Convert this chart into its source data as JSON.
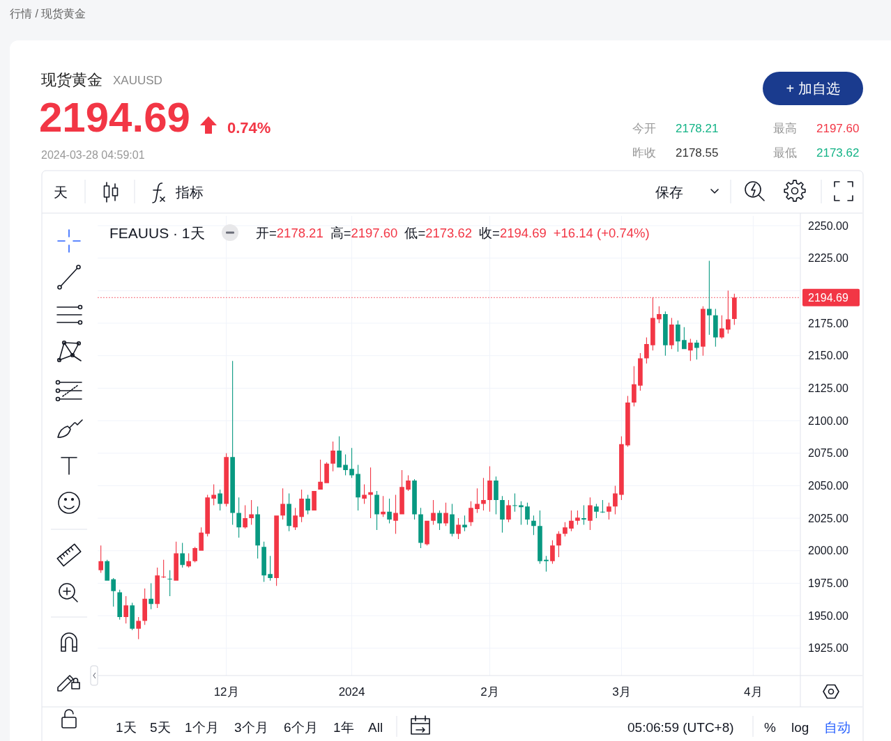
{
  "chart_data": {
    "type": "candlestick",
    "title": "现货黄金",
    "subtitle": "XAUUSD",
    "annotations": [
      "行情 / 现货黄金",
      "2194.69",
      "0.74%",
      "2024-03-28 04:59:01",
      "今开",
      "2178.21",
      "最高",
      "2197.60",
      "昨收",
      "2178.55",
      "最低",
      "2173.62",
      "+ 加自选",
      "天",
      "指标",
      "保存",
      "FEAUUS · 1天",
      "开=",
      "2178.21",
      "高=",
      "2197.60",
      "低=",
      "2173.62",
      "收=",
      "2194.69",
      "+16.14 (+0.74%)",
      "1天",
      "5天",
      "1个月",
      "3个月",
      "6个月",
      "1年",
      "All",
      "05:06:59 (UTC+8)",
      "%",
      "log",
      "自动"
    ],
    "categories": [
      null,
      null,
      null,
      null,
      null,
      null,
      null,
      null,
      null,
      null,
      null,
      null,
      null,
      null,
      null,
      null,
      null,
      null,
      null,
      null,
      "12月",
      null,
      null,
      null,
      null,
      null,
      null,
      null,
      null,
      null,
      null,
      null,
      null,
      null,
      null,
      null,
      null,
      null,
      null,
      null,
      "2024",
      null,
      null,
      null,
      null,
      null,
      null,
      null,
      null,
      null,
      null,
      null,
      null,
      null,
      null,
      null,
      null,
      null,
      null,
      null,
      null,
      null,
      "2月",
      null,
      null,
      null,
      null,
      null,
      null,
      null,
      null,
      null,
      null,
      null,
      null,
      null,
      null,
      null,
      null,
      null,
      null,
      null,
      null,
      "3月",
      null,
      null,
      null,
      null,
      null,
      null,
      null,
      null,
      null,
      null,
      null,
      null,
      null,
      null,
      null,
      null,
      null,
      null,
      null,
      null,
      "4月",
      null,
      null,
      null,
      null,
      null,
      null,
      null
    ],
    "ohlc": [
      [
        1985,
        2004,
        1983,
        1992
      ],
      [
        1992,
        1993,
        1977,
        1977
      ],
      [
        1978,
        1979,
        1957,
        1969
      ],
      [
        1968,
        1970,
        1947,
        1949
      ],
      [
        1949,
        1965,
        1944,
        1958
      ],
      [
        1958,
        1960,
        1939,
        1940
      ],
      [
        1940,
        1949,
        1932,
        1946
      ],
      [
        1946,
        1971,
        1943,
        1963
      ],
      [
        1963,
        1975,
        1955,
        1959
      ],
      [
        1959,
        1987,
        1956,
        1981
      ],
      [
        1979.5,
        1993,
        1979,
        1980
      ],
      [
        1978.5,
        1985,
        1965,
        1978
      ],
      [
        1977,
        2007,
        1977,
        1998
      ],
      [
        1998,
        2006,
        1987,
        1989
      ],
      [
        1988,
        1998,
        1987,
        1992
      ],
      [
        1992,
        2003,
        1991,
        2002
      ],
      [
        2000,
        2018,
        2000,
        2014
      ],
      [
        2013,
        2043,
        2011,
        2041
      ],
      [
        2040,
        2051,
        2035,
        2043
      ],
      [
        2044,
        2047,
        2031,
        2036
      ],
      [
        2036,
        2075,
        2034,
        2072
      ],
      [
        2072,
        2146,
        2020,
        2029
      ],
      [
        2029,
        2041,
        2010,
        2018
      ],
      [
        2018,
        2035,
        2017,
        2025
      ],
      [
        2025,
        2039,
        2020,
        2028
      ],
      [
        2028,
        2034,
        1994,
        2004
      ],
      [
        2003,
        2007,
        1976,
        1981
      ],
      [
        1982,
        1996,
        1977,
        1979
      ],
      [
        1979,
        2027,
        1973,
        2027
      ],
      [
        2027,
        2048,
        2024,
        2036
      ],
      [
        2036,
        2044,
        2015,
        2019
      ],
      [
        2018,
        2033,
        2016,
        2027
      ],
      [
        2026,
        2047,
        2022,
        2040
      ],
      [
        2040,
        2043,
        2028,
        2031
      ],
      [
        2031,
        2046,
        2031,
        2046
      ],
      [
        2047,
        2070,
        2047,
        2053
      ],
      [
        2052,
        2068,
        2052,
        2067
      ],
      [
        2067,
        2084,
        2061,
        2077
      ],
      [
        2077,
        2088,
        2064,
        2064
      ],
      [
        2066,
        2074,
        2058,
        2062
      ],
      [
        2063,
        2079,
        2056,
        2058
      ],
      [
        2059,
        2066,
        2031,
        2041
      ],
      [
        2040,
        2051,
        2036,
        2043
      ],
      [
        2043,
        2064,
        2025,
        2045
      ],
      [
        2043,
        2046,
        2016,
        2028
      ],
      [
        2028,
        2042,
        2026,
        2030
      ],
      [
        2030,
        2040,
        2021,
        2024
      ],
      [
        2023,
        2043,
        2013,
        2029
      ],
      [
        2028,
        2062,
        2028,
        2049
      ],
      [
        2047,
        2058,
        2046,
        2054
      ],
      [
        2054,
        2055,
        2024,
        2028
      ],
      [
        2028,
        2033,
        2002,
        2006
      ],
      [
        2005,
        2023,
        2004,
        2023
      ],
      [
        2023,
        2039,
        2020,
        2029
      ],
      [
        2029,
        2031,
        2016,
        2021
      ],
      [
        2021,
        2037,
        2019,
        2029
      ],
      [
        2028,
        2036,
        2011,
        2013
      ],
      [
        2013,
        2025,
        2009,
        2020
      ],
      [
        2020,
        2027,
        2015,
        2018
      ],
      [
        2022,
        2038,
        2019,
        2033
      ],
      [
        2032,
        2048,
        2029,
        2036
      ],
      [
        2036,
        2056,
        2031,
        2039
      ],
      [
        2039,
        2065,
        2030,
        2054
      ],
      [
        2054,
        2057,
        2028,
        2039
      ],
      [
        2039,
        2042,
        2014,
        2024
      ],
      [
        2024,
        2039,
        2022,
        2035
      ],
      [
        2035,
        2044,
        2030,
        2034.5
      ],
      [
        2035,
        2038,
        2020,
        2033.5
      ],
      [
        2034,
        2037,
        2020,
        2024
      ],
      [
        2023,
        2027,
        2012,
        2019
      ],
      [
        2019,
        2031,
        1990,
        1992
      ],
      [
        1993,
        1996,
        1984,
        1992
      ],
      [
        1992,
        2008,
        1990,
        2004
      ],
      [
        2004,
        2015,
        1995,
        2013
      ],
      [
        2013,
        2022,
        2011,
        2018
      ],
      [
        2017,
        2031,
        2015,
        2023
      ],
      [
        2023,
        2031,
        2020,
        2025.5
      ],
      [
        2025,
        2035,
        2020,
        2024
      ],
      [
        2023,
        2041,
        2016,
        2035
      ],
      [
        2034,
        2036,
        2025,
        2030
      ],
      [
        2030,
        2039,
        2029,
        2029.5
      ],
      [
        2030,
        2037,
        2024,
        2034
      ],
      [
        2034,
        2050,
        2028,
        2044
      ],
      [
        2043,
        2088,
        2039,
        2082
      ],
      [
        2081,
        2119,
        2080,
        2114
      ],
      [
        2114,
        2142,
        2111,
        2128
      ],
      [
        2127,
        2152,
        2123,
        2148
      ],
      [
        2148,
        2164,
        2144,
        2159
      ],
      [
        2158,
        2195,
        2154,
        2179
      ],
      [
        2178,
        2188,
        2175,
        2182
      ],
      [
        2182,
        2184,
        2150,
        2158
      ],
      [
        2158,
        2179,
        2155,
        2174
      ],
      [
        2174,
        2177,
        2153,
        2161
      ],
      [
        2162,
        2172,
        2155,
        2155
      ],
      [
        2154,
        2163,
        2146,
        2160
      ],
      [
        2160,
        2162,
        2147,
        2156
      ],
      [
        2157,
        2188,
        2150,
        2186
      ],
      [
        2186,
        2223,
        2166,
        2181
      ],
      [
        2181,
        2186,
        2157,
        2164
      ],
      [
        2164,
        2181,
        2163,
        2171
      ],
      [
        2170,
        2200,
        2167,
        2178
      ],
      [
        2178.21,
        2197.6,
        2173.62,
        2194.69
      ],
      null,
      null,
      null,
      null,
      null,
      null,
      null,
      null,
      null,
      null
    ],
    "colors": [
      "#f23645",
      "#089981",
      "#089981",
      "#089981",
      "#f23645",
      "#089981",
      "#f23645",
      "#f23645",
      "#089981",
      "#f23645",
      "#f23645",
      "#089981",
      "#f23645",
      "#089981",
      "#f23645",
      "#f23645",
      "#f23645",
      "#f23645",
      "#f23645",
      "#089981",
      "#f23645",
      "#089981",
      "#089981",
      "#f23645",
      "#f23645",
      "#089981",
      "#089981",
      "#089981",
      "#f23645",
      "#f23645",
      "#089981",
      "#f23645",
      "#f23645",
      "#089981",
      "#f23645",
      "#f23645",
      "#f23645",
      "#f23645",
      "#089981",
      "#089981",
      "#089981",
      "#089981",
      "#f23645",
      "#f23645",
      "#089981",
      "#f23645",
      "#089981",
      "#f23645",
      "#f23645",
      "#f23645",
      "#089981",
      "#089981",
      "#f23645",
      "#f23645",
      "#089981",
      "#f23645",
      "#089981",
      "#f23645",
      "#089981",
      "#f23645",
      "#f23645",
      "#f23645",
      "#f23645",
      "#089981",
      "#089981",
      "#f23645",
      "#089981",
      "#089981",
      "#089981",
      "#089981",
      "#089981",
      "#089981",
      "#f23645",
      "#f23645",
      "#f23645",
      "#f23645",
      "#f23645",
      "#089981",
      "#f23645",
      "#089981",
      "#089981",
      "#f23645",
      "#f23645",
      "#f23645",
      "#f23645",
      "#f23645",
      "#f23645",
      "#f23645",
      "#f23645",
      "#f23645",
      "#089981",
      "#f23645",
      "#089981",
      "#089981",
      "#f23645",
      "#089981",
      "#f23645",
      "#089981",
      "#089981",
      "#f23645",
      "#f23645",
      "#f23645",
      null,
      null,
      null,
      null,
      null,
      null,
      null,
      null,
      null,
      null
    ],
    "ylim": [
      1904,
      2257.5
    ],
    "yticks": [
      {
        "value": 1925,
        "label": "1925.00"
      },
      {
        "value": 1950,
        "label": "1950.00"
      },
      {
        "value": 1975,
        "label": "1975.00"
      },
      {
        "value": 2000,
        "label": "2000.00"
      },
      {
        "value": 2025,
        "label": "2025.00"
      },
      {
        "value": 2050,
        "label": "2050.00"
      },
      {
        "value": 2075,
        "label": "2075.00"
      },
      {
        "value": 2100,
        "label": "2100.00"
      },
      {
        "value": 2125,
        "label": "2125.00"
      },
      {
        "value": 2150,
        "label": "2150.00"
      },
      {
        "value": 2175,
        "label": "2175.00"
      },
      {
        "value": 2200,
        "label": null
      },
      {
        "value": 2225,
        "label": "2225.00"
      },
      {
        "value": 2250,
        "label": "2250.00"
      }
    ],
    "grid": true,
    "ref_lines": [
      {
        "axis": "y",
        "value": 2194.69,
        "label": "2194.69",
        "color": "#f23645",
        "line_style": "dotted"
      }
    ]
  }
}
